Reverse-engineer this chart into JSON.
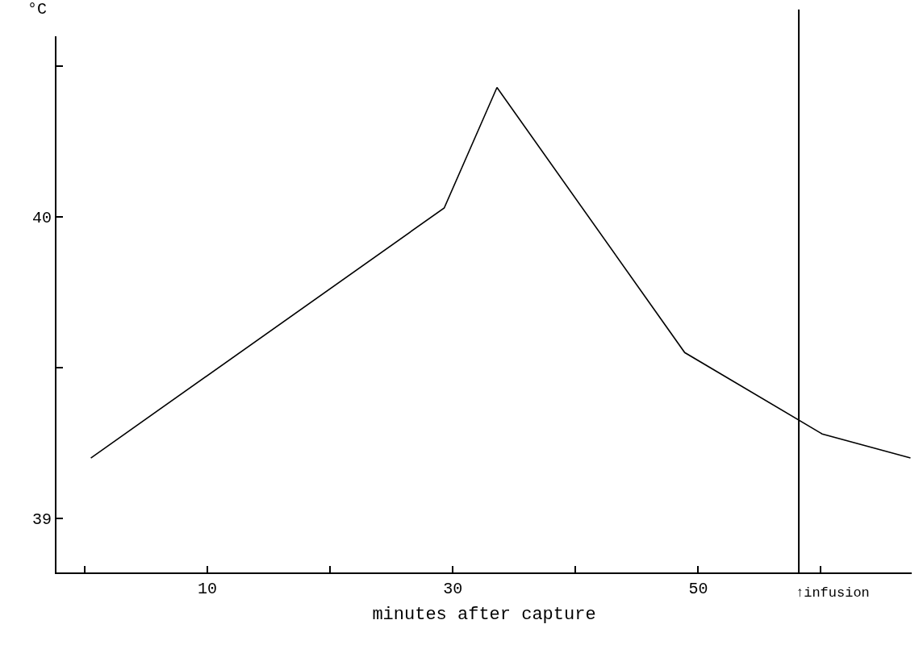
{
  "chart_data": {
    "type": "line",
    "xlabel": "minutes after capture",
    "ylabel": "°C",
    "x": [
      0.5,
      29.3,
      33.6,
      48.9,
      60.1,
      67.3
    ],
    "values": [
      39.2,
      40.03,
      40.43,
      39.55,
      39.28,
      39.2
    ],
    "color": "#000000",
    "xlim": [
      -2.3,
      67.4
    ],
    "xticks": [
      {
        "value": 0,
        "label": null
      },
      10,
      {
        "value": 20,
        "label": null
      },
      30,
      {
        "value": 40,
        "label": null
      },
      50,
      {
        "value": 60,
        "label": null
      }
    ],
    "ylim": [
      38.82,
      40.6
    ],
    "yticks": [
      39,
      {
        "value": 39.5,
        "label": null
      },
      40,
      {
        "value": 40.5,
        "label": null
      }
    ],
    "ref_lines": [
      {
        "axis": "x",
        "value": 58.2,
        "label": "↑infusion",
        "color": "#000000"
      }
    ],
    "marker": "none",
    "line_style": "solid"
  }
}
